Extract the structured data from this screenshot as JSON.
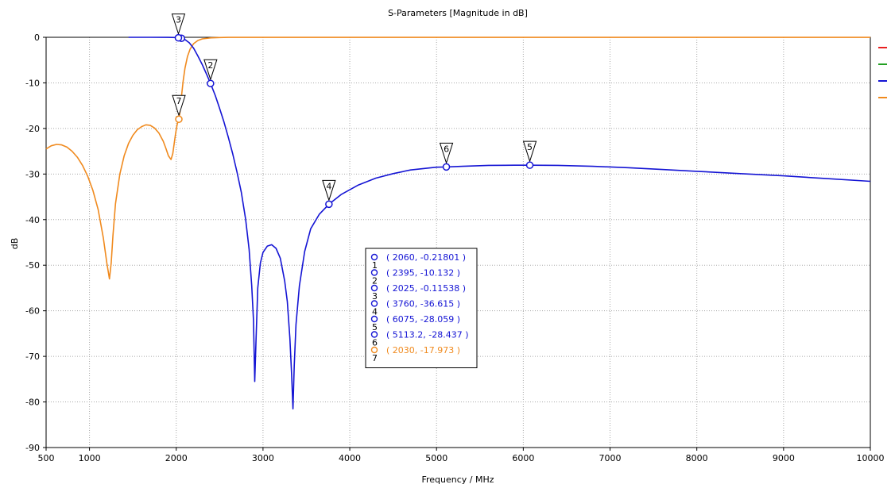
{
  "chart_data": {
    "type": "line",
    "title": "S-Parameters [Magnitude in dB]",
    "xlabel": "Frequency / MHz",
    "ylabel": "dB",
    "xlim": [
      500,
      10000
    ],
    "ylim": [
      -90,
      0
    ],
    "x_ticks": [
      500,
      1000,
      2000,
      3000,
      4000,
      5000,
      6000,
      7000,
      8000,
      9000,
      10000
    ],
    "y_ticks": [
      0,
      -10,
      -20,
      -30,
      -40,
      -50,
      -60,
      -70,
      -80,
      -90
    ],
    "grid": true,
    "legend": {
      "placement": "right",
      "colors": [
        "#e82020",
        "#22a022",
        "#1414d4",
        "#f08a1e"
      ]
    },
    "series": [
      {
        "color": "#f08a1e",
        "x": [
          500,
          560,
          620,
          680,
          740,
          800,
          860,
          920,
          980,
          1040,
          1100,
          1160,
          1200,
          1230,
          1250,
          1270,
          1300,
          1350,
          1400,
          1450,
          1500,
          1550,
          1600,
          1650,
          1700,
          1750,
          1800,
          1850,
          1880,
          1910,
          1940,
          1960,
          1975,
          1990,
          2000,
          2010,
          2020,
          2030,
          2040,
          2050,
          2060,
          2080,
          2100,
          2130,
          2160,
          2200,
          2250,
          2300,
          2400,
          2500,
          2600,
          2800,
          3000,
          4000,
          5000,
          6000,
          7000,
          8000,
          9000,
          10000
        ],
        "y": [
          -24.5,
          -23.8,
          -23.5,
          -23.6,
          -24.1,
          -25.0,
          -26.3,
          -28.1,
          -30.5,
          -33.6,
          -37.8,
          -44.0,
          -49.5,
          -53.0,
          -49.5,
          -43.5,
          -36.5,
          -30.0,
          -26.0,
          -23.3,
          -21.5,
          -20.3,
          -19.6,
          -19.2,
          -19.3,
          -19.9,
          -21.0,
          -22.8,
          -24.3,
          -26.0,
          -26.8,
          -25.5,
          -23.5,
          -21.5,
          -20.3,
          -19.2,
          -18.5,
          -17.97,
          -16.8,
          -15.0,
          -13.0,
          -9.5,
          -6.8,
          -4.2,
          -2.6,
          -1.4,
          -0.7,
          -0.35,
          -0.12,
          -0.05,
          -0.02,
          -0.01,
          -0.01,
          -0.01,
          -0.01,
          -0.01,
          -0.01,
          -0.01,
          -0.01,
          -0.01
        ]
      },
      {
        "color": "#1414d4",
        "x": [
          1450,
          1700,
          1900,
          2000,
          2025,
          2060,
          2100,
          2150,
          2200,
          2250,
          2300,
          2350,
          2395,
          2450,
          2500,
          2550,
          2600,
          2650,
          2700,
          2750,
          2800,
          2840,
          2870,
          2890,
          2905,
          2920,
          2940,
          2970,
          3000,
          3050,
          3100,
          3150,
          3200,
          3250,
          3280,
          3310,
          3330,
          3345,
          3360,
          3380,
          3420,
          3480,
          3550,
          3650,
          3760,
          3900,
          4100,
          4300,
          4500,
          4700,
          5000,
          5113.2,
          5300,
          5600,
          5900,
          6075,
          6400,
          6800,
          7200,
          7600,
          8000,
          8500,
          9000,
          9500,
          10000
        ],
        "y": [
          0,
          0,
          -0.02,
          -0.06,
          -0.11538,
          -0.21801,
          -0.5,
          -1.2,
          -2.4,
          -4.1,
          -6.0,
          -8.1,
          -10.132,
          -12.8,
          -15.6,
          -18.6,
          -21.9,
          -25.5,
          -29.5,
          -34.0,
          -40.0,
          -46.5,
          -54.5,
          -62.0,
          -75.5,
          -66.0,
          -55.0,
          -49.5,
          -47.2,
          -45.8,
          -45.5,
          -46.3,
          -48.5,
          -53.5,
          -58.0,
          -66.0,
          -74.0,
          -81.5,
          -72.0,
          -63.0,
          -54.5,
          -47.0,
          -42.0,
          -38.8,
          -36.615,
          -34.5,
          -32.4,
          -30.9,
          -29.9,
          -29.1,
          -28.5,
          -28.437,
          -28.3,
          -28.1,
          -28.06,
          -28.059,
          -28.1,
          -28.3,
          -28.6,
          -29.0,
          -29.4,
          -29.9,
          -30.4,
          -31.0,
          -31.6
        ]
      }
    ],
    "markers": [
      {
        "id": "1",
        "x": 2060,
        "y": -0.21801,
        "color": "#1414d4",
        "flag": false
      },
      {
        "id": "2",
        "x": 2395,
        "y": -10.132,
        "color": "#1414d4",
        "flag": true
      },
      {
        "id": "3",
        "x": 2025,
        "y": -0.11538,
        "color": "#1414d4",
        "flag": true
      },
      {
        "id": "4",
        "x": 3760,
        "y": -36.615,
        "color": "#1414d4",
        "flag": true
      },
      {
        "id": "5",
        "x": 6075,
        "y": -28.059,
        "color": "#1414d4",
        "flag": true
      },
      {
        "id": "6",
        "x": 5113.2,
        "y": -28.437,
        "color": "#1414d4",
        "flag": true
      },
      {
        "id": "7",
        "x": 2030,
        "y": -17.973,
        "color": "#f08a1e",
        "flag": true
      }
    ],
    "readout": [
      {
        "id": "1",
        "text": "( 2060, -0.21801 )",
        "color": "#1414d4"
      },
      {
        "id": "2",
        "text": "( 2395, -10.132 )",
        "color": "#1414d4"
      },
      {
        "id": "3",
        "text": "( 2025, -0.11538 )",
        "color": "#1414d4"
      },
      {
        "id": "4",
        "text": "( 3760, -36.615 )",
        "color": "#1414d4"
      },
      {
        "id": "5",
        "text": "( 6075, -28.059 )",
        "color": "#1414d4"
      },
      {
        "id": "6",
        "text": "( 5113.2, -28.437 )",
        "color": "#1414d4"
      },
      {
        "id": "7",
        "text": "( 2030, -17.973 )",
        "color": "#f08a1e"
      }
    ]
  }
}
